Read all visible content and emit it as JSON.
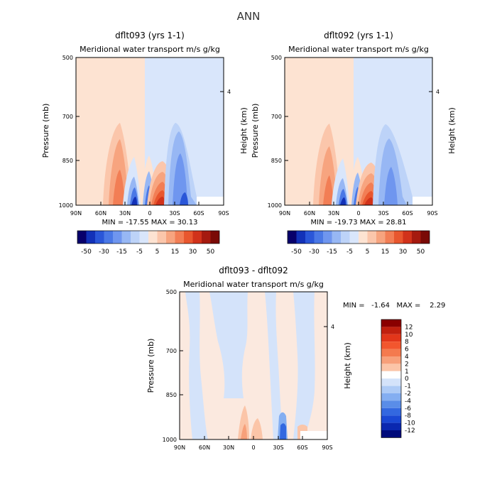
{
  "page": {
    "title": "ANN"
  },
  "chart_data": [
    {
      "type": "heatmap",
      "title": "dflt093 (yrs 1-1)",
      "subtitle": "Meridional water transport m/s g/kg",
      "ylabel": "Pressure (mb)",
      "ylabel_right": "Height (km)",
      "x_tick_labels": [
        "90N",
        "60N",
        "30N",
        "0",
        "30S",
        "60S",
        "90S"
      ],
      "y_ticks": [
        500,
        700,
        850,
        1000
      ],
      "y_tick_labels": [
        "500",
        "700",
        "850",
        "1000"
      ],
      "right_tick_labels": [
        "4"
      ],
      "ylim": [
        500,
        1000
      ],
      "stats": "MIN = -17.55   MAX =  30.13",
      "colorbar_labels": [
        "-50",
        "-30",
        "-15",
        "-5",
        "5",
        "15",
        "30",
        "50"
      ],
      "colorbar_colors": [
        "#08006b",
        "#1231b8",
        "#2a56d8",
        "#4a78e6",
        "#6f96ef",
        "#97b7f4",
        "#bdd3f8",
        "#d9e6fb",
        "#fde3d2",
        "#fbc6ab",
        "#f7a47f",
        "#f27e55",
        "#e8562e",
        "#d1321a",
        "#a51a0f",
        "#7a0a06"
      ]
    },
    {
      "type": "heatmap",
      "title": "dflt092 (yrs 1-1)",
      "subtitle": "Meridional water transport m/s g/kg",
      "ylabel": "Pressure (mb)",
      "ylabel_right": "Height (km)",
      "x_tick_labels": [
        "90N",
        "60N",
        "30N",
        "0",
        "30S",
        "60S",
        "90S"
      ],
      "y_ticks": [
        500,
        700,
        850,
        1000
      ],
      "y_tick_labels": [
        "500",
        "700",
        "850",
        "1000"
      ],
      "right_tick_labels": [
        "4"
      ],
      "ylim": [
        500,
        1000
      ],
      "stats": "MIN = -19.73   MAX =  28.81",
      "colorbar_labels": [
        "-50",
        "-30",
        "-15",
        "-5",
        "5",
        "15",
        "30",
        "50"
      ],
      "colorbar_colors": [
        "#08006b",
        "#1231b8",
        "#2a56d8",
        "#4a78e6",
        "#6f96ef",
        "#97b7f4",
        "#bdd3f8",
        "#d9e6fb",
        "#fde3d2",
        "#fbc6ab",
        "#f7a47f",
        "#f27e55",
        "#e8562e",
        "#d1321a",
        "#a51a0f",
        "#7a0a06"
      ]
    },
    {
      "type": "heatmap",
      "title": "dflt093 - dflt092",
      "subtitle": "Meridional water transport m/s g/kg",
      "ylabel": "Pressure (mb)",
      "ylabel_right": "Height (km)",
      "x_tick_labels": [
        "90N",
        "60N",
        "30N",
        "0",
        "30S",
        "60S",
        "90S"
      ],
      "y_ticks": [
        500,
        700,
        850,
        1000
      ],
      "y_tick_labels": [
        "500",
        "700",
        "850",
        "1000"
      ],
      "right_tick_labels": [
        "4"
      ],
      "ylim": [
        500,
        1000
      ],
      "stats": "MIN =   -1.64   MAX =    2.29",
      "colorbar_labels": [
        "12",
        "10",
        "8",
        "6",
        "4",
        "2",
        "1",
        "0",
        "-1",
        "-2",
        "-4",
        "-6",
        "-8",
        "-10",
        "-12"
      ],
      "colorbar_colors": [
        "#8a0000",
        "#c1200f",
        "#e2361a",
        "#f2562e",
        "#f47a4e",
        "#f7a07a",
        "#fbc5a8",
        "#ffffff",
        "#d4e3fa",
        "#aecbf6",
        "#84aef1",
        "#5a8de8",
        "#3368e0",
        "#1a48d4",
        "#0a28b0",
        "#000a7a"
      ]
    }
  ]
}
